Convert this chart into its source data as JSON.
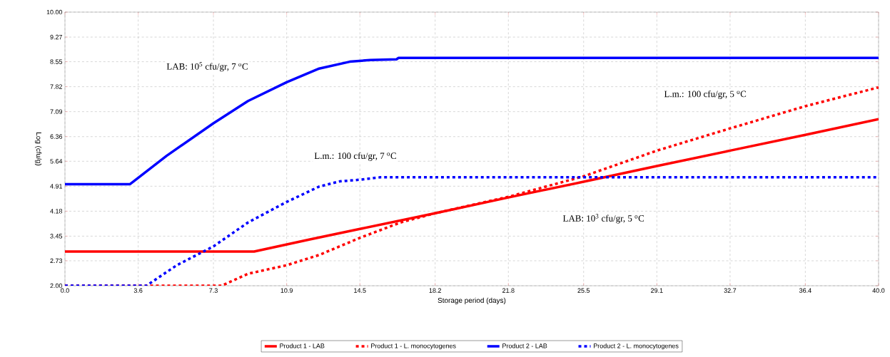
{
  "chart_data": {
    "type": "line",
    "xlabel": "Storage period (days)",
    "ylabel": "Log (cfu/g)",
    "xlim": [
      0,
      40
    ],
    "ylim": [
      2,
      10
    ],
    "xticks": [
      {
        "value": 0,
        "label": "0.0"
      },
      3.6,
      7.3,
      10.9,
      14.5,
      18.2,
      21.8,
      25.5,
      29.1,
      32.7,
      36.4,
      {
        "value": 40,
        "label": "40.0"
      }
    ],
    "yticks": [
      {
        "value": 2,
        "label": "2.00"
      },
      2.73,
      3.45,
      4.18,
      4.91,
      5.64,
      6.36,
      7.09,
      7.82,
      8.55,
      9.27,
      {
        "value": 10,
        "label": "10.00"
      }
    ],
    "grid": true,
    "legend": "bottom",
    "marker": "none",
    "series": [
      {
        "name": "Product 1 - LAB",
        "color": "#ff0000",
        "line_style": "solid",
        "x": [
          0,
          9.3,
          12,
          14.5,
          18.2,
          21.8,
          25.5,
          29.1,
          32.7,
          36.4,
          40
        ],
        "values": [
          3.0,
          3.0,
          3.35,
          3.66,
          4.12,
          4.58,
          5.04,
          5.5,
          5.95,
          6.41,
          6.87
        ]
      },
      {
        "name": "Product 1 - L. monocytogenes",
        "color": "#ff0000",
        "line_style": "dotted",
        "x": [
          0,
          7.7,
          9,
          10.9,
          12.5,
          14.5,
          16.5,
          18.2,
          21.8,
          25.5,
          29.1,
          32.7,
          36.4,
          40
        ],
        "values": [
          2.0,
          2.0,
          2.35,
          2.6,
          2.9,
          3.4,
          3.85,
          4.12,
          4.6,
          5.2,
          5.95,
          6.6,
          7.25,
          7.8
        ]
      },
      {
        "name": "Product 2 - LAB",
        "color": "#0000ff",
        "line_style": "solid",
        "x": [
          0,
          3.2,
          5,
          7.3,
          9,
          10.9,
          12.5,
          14,
          15,
          16.3,
          16.4,
          40
        ],
        "values": [
          4.97,
          4.97,
          5.8,
          6.75,
          7.4,
          7.95,
          8.35,
          8.55,
          8.6,
          8.62,
          8.66,
          8.66
        ]
      },
      {
        "name": "Product 2 - L. monocytogenes",
        "color": "#0000ff",
        "line_style": "dotted",
        "x": [
          0,
          4.0,
          5.5,
          7.3,
          9,
          10.9,
          12.5,
          13.5,
          14.5,
          15.5,
          40
        ],
        "values": [
          2.0,
          2.0,
          2.6,
          3.15,
          3.85,
          4.45,
          4.9,
          5.05,
          5.1,
          5.17,
          5.17
        ]
      }
    ],
    "annotations": [
      "LAB: 10$^{5}$ cfu/gr, 7 $^{o}$C",
      "L.m.: 100 cfu/gr, 7 $^{o}$C",
      "L.m.: 100 cfu/gr, 5 $^{o}$C",
      "LAB: 10$^{3}$ cfu/gr, 5 $^{o}$C"
    ]
  }
}
